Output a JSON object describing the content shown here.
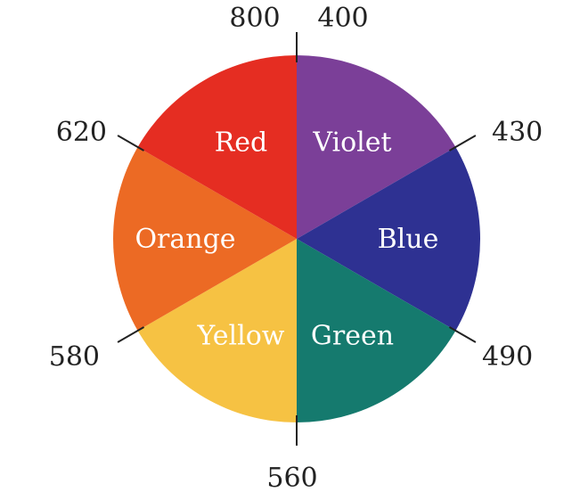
{
  "diagram": {
    "sectors": [
      {
        "label": "Violet",
        "color": "#7b3f98"
      },
      {
        "label": "Blue",
        "color": "#2e3192"
      },
      {
        "label": "Green",
        "color": "#157a6e"
      },
      {
        "label": "Yellow",
        "color": "#f6c243"
      },
      {
        "label": "Orange",
        "color": "#ec6a24"
      },
      {
        "label": "Red",
        "color": "#e52d22"
      }
    ],
    "boundaries": [
      {
        "labels": [
          "800",
          "400"
        ]
      },
      {
        "labels": [
          "430"
        ]
      },
      {
        "labels": [
          "490"
        ]
      },
      {
        "labels": [
          "560"
        ]
      },
      {
        "labels": [
          "580"
        ]
      },
      {
        "labels": [
          "620"
        ]
      }
    ]
  }
}
